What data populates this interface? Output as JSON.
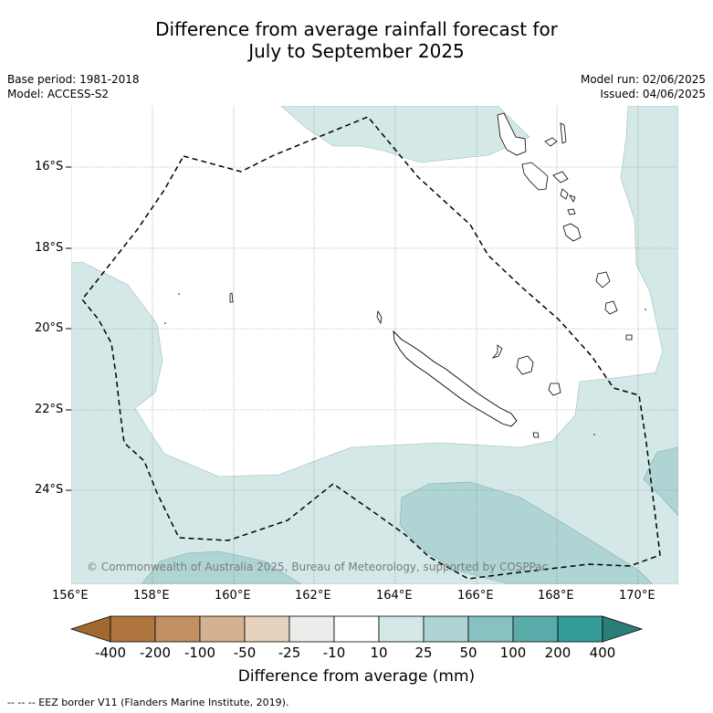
{
  "title": {
    "line1": "Difference from average rainfall forecast for",
    "line2": "July to September 2025"
  },
  "meta": {
    "base_period": "Base period: 1981-2018",
    "model": "Model: ACCESS-S2",
    "model_run": "Model run: 02/06/2025",
    "issued": "Issued: 04/06/2025"
  },
  "axes": {
    "lat_labels": [
      "16°S",
      "18°S",
      "20°S",
      "22°S",
      "24°S"
    ],
    "lon_labels": [
      "156°E",
      "158°E",
      "160°E",
      "162°E",
      "164°E",
      "166°E",
      "168°E",
      "170°E"
    ]
  },
  "copyright": "© Commonwealth of Australia 2025, Bureau of Meteorology, supported by COSPPac",
  "colorbar": {
    "title": "Difference from average (mm)",
    "labels": [
      "-400",
      "-200",
      "-100",
      "-50",
      "-25",
      "-10",
      "10",
      "25",
      "50",
      "100",
      "200",
      "400"
    ],
    "colors": {
      "lt_400": "#a0692e",
      "neg400_neg200": "#b0763f",
      "neg200_neg100": "#c29063",
      "neg100_neg50": "#d4b191",
      "neg50_neg25": "#e6d2bf",
      "neg25_neg10": "#ececea",
      "neg10_10": "#ffffff",
      "p10_25": "#d4e9e7",
      "p25_50": "#aed5d4",
      "p50_100": "#88c1c1",
      "p100_200": "#5aacab",
      "p200_400": "#339c96",
      "gt_400": "#2b7f78"
    }
  },
  "footer": "-- -- -- EEZ border V11 (Flanders Marine Institute, 2019)."
}
